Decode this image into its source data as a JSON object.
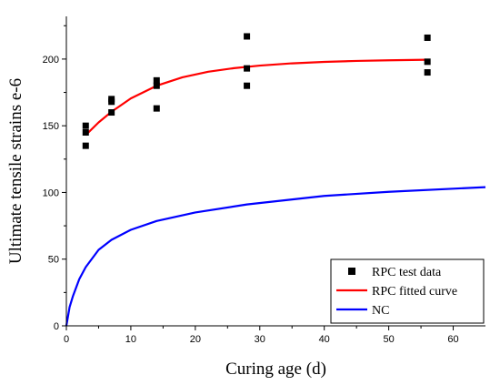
{
  "chart_data": {
    "type": "scatter",
    "xlabel": "Curing age (d)",
    "ylabel": "Ultimate tensile strains  e-6",
    "xlim": [
      0,
      65
    ],
    "ylim": [
      0,
      232
    ],
    "xticks": [
      0,
      10,
      20,
      30,
      40,
      50,
      60
    ],
    "yticks": [
      0,
      50,
      100,
      150,
      200
    ],
    "grid": false,
    "legend_position": "bottom-right",
    "series": [
      {
        "name": "RPC test data",
        "kind": "scatter",
        "marker": "square",
        "color": "#000000",
        "x": [
          3,
          3,
          3,
          7,
          7,
          7,
          14,
          14,
          14,
          28,
          28,
          28,
          56,
          56,
          56
        ],
        "y": [
          135,
          145,
          150,
          160,
          168,
          170,
          163,
          180,
          184,
          180,
          193,
          217,
          190,
          198,
          216
        ]
      },
      {
        "name": "RPC fitted curve",
        "kind": "line",
        "color": "#ff0000",
        "x": [
          3,
          5,
          7,
          10,
          14,
          18,
          22,
          26,
          30,
          35,
          40,
          45,
          50,
          56
        ],
        "y": [
          143,
          152.5,
          160.5,
          170.5,
          180,
          186.3,
          190.5,
          193.2,
          195.1,
          196.8,
          197.9,
          198.6,
          199.1,
          199.5
        ]
      },
      {
        "name": "NC",
        "kind": "line",
        "color": "#0000ff",
        "x": [
          0,
          0.5,
          1,
          2,
          3,
          5,
          7,
          10,
          14,
          20,
          28,
          40,
          50,
          65
        ],
        "y": [
          0,
          14,
          22,
          35,
          44,
          57,
          64.5,
          72,
          78.6,
          85,
          91,
          97.4,
          100.5,
          104
        ]
      }
    ]
  }
}
